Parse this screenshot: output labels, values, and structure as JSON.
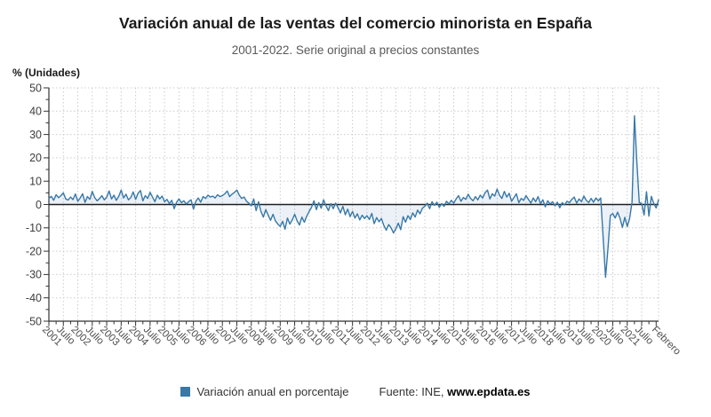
{
  "header": {
    "title": "Variación anual de las ventas del comercio minorista en España",
    "subtitle": "2001-2022. Serie original a precios constantes"
  },
  "legend": {
    "series_label": "Variación anual en porcentaje",
    "source_prefix": "Fuente: INE, ",
    "source_site": "www.epdata.es"
  },
  "colors": {
    "line": "#3878a8",
    "area_fill": "rgba(56,120,168,0.10)",
    "grid": "#cccccc",
    "axis": "#333333",
    "zero_line": "#1a1a1a",
    "y_tick_label": "#3d3d3d",
    "x_tick_label": "#4d4d4d"
  },
  "chart_data": {
    "type": "line",
    "title": "Variación anual de las ventas del comercio minorista en España",
    "subtitle": "2001-2022. Serie original a precios constantes",
    "ylabel": "% (Unidades)",
    "xlabel": "",
    "ylim": [
      -50,
      50
    ],
    "ytick_step": 10,
    "grid": true,
    "legend_position": "bottom",
    "frequency": "monthly",
    "x_start": "2001-01",
    "x_end": "2022-02",
    "x_tick_labels": [
      "2001",
      "Julio",
      "2002",
      "Julio",
      "2003",
      "Julio",
      "2004",
      "Julio",
      "2005",
      "Julio",
      "2006",
      "Julio",
      "2007",
      "Julio",
      "2008",
      "Julio",
      "2009",
      "Julio",
      "2010",
      "Julio",
      "2011",
      "Julio",
      "2012",
      "Julio",
      "2013",
      "Julio",
      "2014",
      "Julio",
      "2015",
      "Julio",
      "2016",
      "Julio",
      "2017",
      "Julio",
      "2018",
      "Julio",
      "2019",
      "Julio",
      "2020",
      "Julio",
      "2021",
      "Julio",
      "Febrero"
    ],
    "x_tick_month_offsets": [
      0,
      6,
      12,
      18,
      24,
      30,
      36,
      42,
      48,
      54,
      60,
      66,
      72,
      78,
      84,
      90,
      96,
      102,
      108,
      114,
      120,
      126,
      132,
      138,
      144,
      150,
      156,
      162,
      168,
      174,
      180,
      186,
      192,
      198,
      204,
      210,
      216,
      222,
      228,
      234,
      240,
      246,
      253
    ],
    "series": [
      {
        "name": "Variación anual en porcentaje",
        "color": "#3878a8",
        "values": [
          2.6,
          3.5,
          1.8,
          4.2,
          2.9,
          3.8,
          5.0,
          2.4,
          1.9,
          3.2,
          2.1,
          4.5,
          1.4,
          2.8,
          4.6,
          0.9,
          3.4,
          2.2,
          5.6,
          3.0,
          1.6,
          2.5,
          3.8,
          2.0,
          3.2,
          5.8,
          2.4,
          4.0,
          1.8,
          3.5,
          6.2,
          2.8,
          4.4,
          2.0,
          3.0,
          5.4,
          2.2,
          4.8,
          6.0,
          1.6,
          3.8,
          2.6,
          5.2,
          3.2,
          1.2,
          4.0,
          2.4,
          3.6,
          1.2,
          2.2,
          0.4,
          1.8,
          -1.8,
          1.0,
          2.4,
          0.8,
          1.6,
          0.2,
          1.2,
          2.0,
          -2.0,
          1.4,
          2.8,
          1.0,
          3.4,
          2.6,
          4.0,
          3.2,
          3.6,
          2.8,
          4.2,
          3.4,
          3.8,
          4.6,
          5.8,
          3.4,
          4.4,
          5.2,
          6.2,
          4.0,
          2.6,
          3.2,
          1.4,
          0.6,
          -0.6,
          2.4,
          -2.6,
          1.2,
          -3.0,
          -5.4,
          -2.2,
          -4.6,
          -6.8,
          -4.2,
          -7.0,
          -8.4,
          -9.4,
          -7.2,
          -10.6,
          -5.8,
          -8.4,
          -6.6,
          -4.2,
          -7.0,
          -8.8,
          -5.4,
          -7.6,
          -5.0,
          -3.0,
          -1.2,
          1.6,
          -2.2,
          0.8,
          -1.6,
          2.0,
          -0.6,
          -2.6,
          0.4,
          -1.8,
          0.6,
          -1.4,
          -3.6,
          -0.8,
          -4.4,
          -2.0,
          -5.2,
          -3.0,
          -5.8,
          -4.0,
          -6.6,
          -4.6,
          -6.0,
          -4.8,
          -6.4,
          -3.8,
          -8.2,
          -5.6,
          -7.4,
          -6.0,
          -9.0,
          -11.0,
          -8.6,
          -10.0,
          -12.2,
          -10.4,
          -8.0,
          -10.8,
          -5.2,
          -7.6,
          -4.8,
          -6.4,
          -3.6,
          -5.4,
          -2.4,
          -4.0,
          -1.6,
          -0.8,
          0.6,
          -1.8,
          1.2,
          -0.4,
          1.0,
          -1.2,
          0.4,
          -0.8,
          1.4,
          0.2,
          1.8,
          0.6,
          2.4,
          3.8,
          1.4,
          3.0,
          2.2,
          4.4,
          2.6,
          1.6,
          3.4,
          2.0,
          4.0,
          2.8,
          5.0,
          6.2,
          2.4,
          4.6,
          3.6,
          6.6,
          4.0,
          2.6,
          5.6,
          3.2,
          4.8,
          1.4,
          3.0,
          4.6,
          0.8,
          2.6,
          1.8,
          3.8,
          2.2,
          0.6,
          2.8,
          1.2,
          3.4,
          0.4,
          2.0,
          -1.0,
          1.6,
          0.2,
          1.2,
          -0.6,
          1.0,
          -1.4,
          0.8,
          -0.2,
          1.4,
          0.8,
          2.2,
          3.2,
          0.6,
          2.4,
          1.2,
          3.6,
          1.8,
          0.8,
          2.6,
          1.0,
          2.8,
          1.6,
          2.8,
          -14.1,
          -31.2,
          -19.0,
          -4.7,
          -3.9,
          -5.8,
          -3.3,
          -5.9,
          -9.8,
          -5.5,
          -9.5,
          -5.9,
          1.0,
          38.0,
          18.0,
          0.8,
          0.4,
          -4.5,
          5.5,
          -5.0,
          3.5,
          0.5,
          -1.5,
          2.0
        ]
      }
    ]
  }
}
